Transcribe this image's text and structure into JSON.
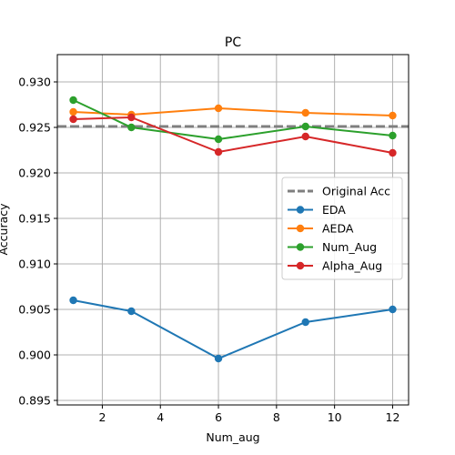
{
  "chart_data": {
    "type": "line",
    "title": "PC",
    "xlabel": "Num_aug",
    "ylabel": "Accuracy",
    "xlim": [
      0.45,
      12.55
    ],
    "ylim": [
      0.8945,
      0.933
    ],
    "xticks": [
      2,
      4,
      6,
      8,
      10,
      12
    ],
    "yticks": [
      0.895,
      0.9,
      0.905,
      0.91,
      0.915,
      0.92,
      0.925,
      0.93
    ],
    "grid": true,
    "legend_position": "center-right",
    "reference_line": {
      "name": "Original Acc",
      "value": 0.9251,
      "color": "#7f7f7f",
      "style": "dashed"
    },
    "x": [
      1,
      3,
      6,
      9,
      12
    ],
    "series": [
      {
        "name": "EDA",
        "color": "#1f77b4",
        "values": [
          0.906,
          0.9048,
          0.8996,
          0.9036,
          0.905
        ]
      },
      {
        "name": "AEDA",
        "color": "#ff7f0e",
        "values": [
          0.9267,
          0.9264,
          0.9271,
          0.9266,
          0.9263
        ]
      },
      {
        "name": "Num_Aug",
        "color": "#2ca02c",
        "values": [
          0.928,
          0.925,
          0.9237,
          0.9251,
          0.9241
        ]
      },
      {
        "name": "Alpha_Aug",
        "color": "#d62728",
        "values": [
          0.9259,
          0.9261,
          0.9223,
          0.924,
          0.9222
        ]
      }
    ]
  }
}
